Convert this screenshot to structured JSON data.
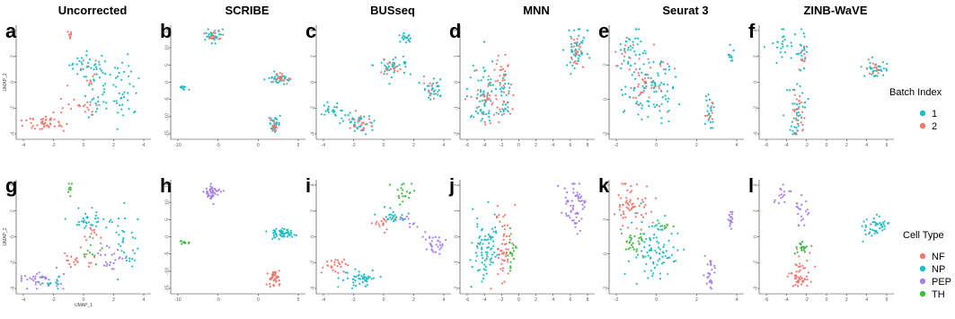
{
  "chart_data": {
    "type": "scatter",
    "methods": [
      "Uncorrected",
      "SCRIBE",
      "BUSseq",
      "MNN",
      "Seurat 3",
      "ZINB-WaVE"
    ],
    "batch_legend": {
      "title": "Batch Index",
      "entries": [
        {
          "label": "1",
          "color": "#1fbcc4"
        },
        {
          "label": "2",
          "color": "#f0786c"
        }
      ]
    },
    "celltype_legend": {
      "title": "Cell Type",
      "entries": [
        {
          "label": "NF",
          "color": "#f0786c"
        },
        {
          "label": "NP",
          "color": "#1fbcc4"
        },
        {
          "label": "PEP",
          "color": "#a680e8"
        },
        {
          "label": "TH",
          "color": "#3fbb3f"
        }
      ]
    },
    "panels": [
      {
        "letter": "a",
        "title": "Uncorrected",
        "row": 0,
        "color_by": "batch",
        "xlabel": "",
        "ylabel": "UMAP_2",
        "xticks": [
          "-4",
          "-2",
          "0",
          "2",
          "4"
        ],
        "yticks": [
          "4",
          "2",
          "0",
          "-2",
          "-4"
        ],
        "clusters": [
          {
            "cx": 0.4,
            "cy": 0.06,
            "sx": 0.01,
            "sy": 0.03,
            "n": 8,
            "group": "2"
          },
          {
            "cx": 0.55,
            "cy": 0.35,
            "sx": 0.08,
            "sy": 0.05,
            "n": 35,
            "group": "1"
          },
          {
            "cx": 0.8,
            "cy": 0.55,
            "sx": 0.06,
            "sy": 0.15,
            "n": 40,
            "group": "1"
          },
          {
            "cx": 0.6,
            "cy": 0.6,
            "sx": 0.05,
            "sy": 0.1,
            "n": 25,
            "group": "1"
          },
          {
            "cx": 0.45,
            "cy": 0.72,
            "sx": 0.08,
            "sy": 0.05,
            "n": 20,
            "group": "2"
          },
          {
            "cx": 0.2,
            "cy": 0.88,
            "sx": 0.1,
            "sy": 0.04,
            "n": 45,
            "group": "2"
          },
          {
            "cx": 0.55,
            "cy": 0.45,
            "sx": 0.05,
            "sy": 0.07,
            "n": 12,
            "group": "2"
          }
        ]
      },
      {
        "letter": "b",
        "title": "SCRIBE",
        "row": 0,
        "color_by": "batch",
        "xlabel": "",
        "ylabel": "",
        "xticks": [
          "-10",
          "-5",
          "0",
          "5"
        ],
        "yticks": [
          "15",
          "10",
          "5",
          "0",
          "-5",
          "-10",
          "-15"
        ],
        "clusters": [
          {
            "cx": 0.3,
            "cy": 0.08,
            "sx": 0.03,
            "sy": 0.03,
            "n": 30,
            "group": "1"
          },
          {
            "cx": 0.3,
            "cy": 0.08,
            "sx": 0.03,
            "sy": 0.03,
            "n": 15,
            "group": "2"
          },
          {
            "cx": 0.08,
            "cy": 0.55,
            "sx": 0.02,
            "sy": 0.01,
            "n": 10,
            "group": "1"
          },
          {
            "cx": 0.82,
            "cy": 0.47,
            "sx": 0.04,
            "sy": 0.02,
            "n": 30,
            "group": "1"
          },
          {
            "cx": 0.84,
            "cy": 0.47,
            "sx": 0.04,
            "sy": 0.02,
            "n": 20,
            "group": "2"
          },
          {
            "cx": 0.78,
            "cy": 0.88,
            "sx": 0.02,
            "sy": 0.03,
            "n": 30,
            "group": "1"
          },
          {
            "cx": 0.78,
            "cy": 0.88,
            "sx": 0.02,
            "sy": 0.03,
            "n": 15,
            "group": "2"
          }
        ]
      },
      {
        "letter": "c",
        "title": "BUSseq",
        "row": 0,
        "color_by": "batch",
        "xlabel": "",
        "ylabel": "",
        "xticks": [
          "-4",
          "-2",
          "0",
          "2",
          "4"
        ],
        "yticks": [
          "4",
          "2",
          "0",
          "-2",
          "-4"
        ],
        "clusters": [
          {
            "cx": 0.67,
            "cy": 0.1,
            "sx": 0.03,
            "sy": 0.04,
            "n": 20,
            "group": "1"
          },
          {
            "cx": 0.58,
            "cy": 0.35,
            "sx": 0.08,
            "sy": 0.05,
            "n": 35,
            "group": "1"
          },
          {
            "cx": 0.55,
            "cy": 0.35,
            "sx": 0.05,
            "sy": 0.04,
            "n": 15,
            "group": "2"
          },
          {
            "cx": 0.88,
            "cy": 0.55,
            "sx": 0.04,
            "sy": 0.05,
            "n": 30,
            "group": "1"
          },
          {
            "cx": 0.88,
            "cy": 0.55,
            "sx": 0.03,
            "sy": 0.04,
            "n": 10,
            "group": "2"
          },
          {
            "cx": 0.12,
            "cy": 0.75,
            "sx": 0.05,
            "sy": 0.04,
            "n": 25,
            "group": "1"
          },
          {
            "cx": 0.32,
            "cy": 0.88,
            "sx": 0.07,
            "sy": 0.04,
            "n": 35,
            "group": "1"
          },
          {
            "cx": 0.32,
            "cy": 0.88,
            "sx": 0.06,
            "sy": 0.03,
            "n": 20,
            "group": "2"
          }
        ]
      },
      {
        "letter": "d",
        "title": "MNN",
        "row": 0,
        "color_by": "batch",
        "xlabel": "",
        "ylabel": "",
        "xticks": [
          "-6",
          "-4",
          "-2",
          "0",
          "2",
          "4",
          "6",
          "8"
        ],
        "yticks": [
          "2",
          "1",
          "0",
          "-1",
          "-2"
        ],
        "clusters": [
          {
            "cx": 0.87,
            "cy": 0.2,
            "sx": 0.04,
            "sy": 0.1,
            "n": 45,
            "group": "1"
          },
          {
            "cx": 0.87,
            "cy": 0.2,
            "sx": 0.03,
            "sy": 0.08,
            "n": 20,
            "group": "2"
          },
          {
            "cx": 0.18,
            "cy": 0.62,
            "sx": 0.07,
            "sy": 0.17,
            "n": 70,
            "group": "1"
          },
          {
            "cx": 0.18,
            "cy": 0.62,
            "sx": 0.06,
            "sy": 0.14,
            "n": 30,
            "group": "2"
          },
          {
            "cx": 0.32,
            "cy": 0.6,
            "sx": 0.03,
            "sy": 0.18,
            "n": 40,
            "group": "2"
          },
          {
            "cx": 0.32,
            "cy": 0.6,
            "sx": 0.03,
            "sy": 0.15,
            "n": 20,
            "group": "1"
          }
        ]
      },
      {
        "letter": "e",
        "title": "Seurat 3",
        "row": 0,
        "color_by": "batch",
        "xlabel": "",
        "ylabel": "",
        "xticks": [
          "-2",
          "0",
          "2",
          "4"
        ],
        "yticks": [
          "4",
          "2",
          "0",
          "-2"
        ],
        "clusters": [
          {
            "cx": 0.12,
            "cy": 0.2,
            "sx": 0.06,
            "sy": 0.1,
            "n": 35,
            "group": "1"
          },
          {
            "cx": 0.12,
            "cy": 0.2,
            "sx": 0.05,
            "sy": 0.08,
            "n": 10,
            "group": "2"
          },
          {
            "cx": 0.3,
            "cy": 0.55,
            "sx": 0.1,
            "sy": 0.15,
            "n": 90,
            "group": "1"
          },
          {
            "cx": 0.28,
            "cy": 0.5,
            "sx": 0.09,
            "sy": 0.13,
            "n": 40,
            "group": "2"
          },
          {
            "cx": 0.92,
            "cy": 0.25,
            "sx": 0.01,
            "sy": 0.04,
            "n": 10,
            "group": "1"
          },
          {
            "cx": 0.76,
            "cy": 0.78,
            "sx": 0.02,
            "sy": 0.08,
            "n": 20,
            "group": "1"
          },
          {
            "cx": 0.76,
            "cy": 0.78,
            "sx": 0.02,
            "sy": 0.06,
            "n": 8,
            "group": "2"
          }
        ]
      },
      {
        "letter": "f",
        "title": "ZINB-WaVE",
        "row": 0,
        "color_by": "batch",
        "xlabel": "",
        "ylabel": "",
        "xticks": [
          "-6",
          "-4",
          "-2",
          "0",
          "2",
          "4",
          "6"
        ],
        "yticks": [
          "4",
          "2",
          "0",
          "-2",
          "-4"
        ],
        "clusters": [
          {
            "cx": 0.15,
            "cy": 0.15,
            "sx": 0.05,
            "sy": 0.08,
            "n": 25,
            "group": "1"
          },
          {
            "cx": 0.32,
            "cy": 0.25,
            "sx": 0.03,
            "sy": 0.08,
            "n": 20,
            "group": "1"
          },
          {
            "cx": 0.32,
            "cy": 0.25,
            "sx": 0.02,
            "sy": 0.06,
            "n": 8,
            "group": "2"
          },
          {
            "cx": 0.88,
            "cy": 0.38,
            "sx": 0.05,
            "sy": 0.04,
            "n": 30,
            "group": "1"
          },
          {
            "cx": 0.88,
            "cy": 0.38,
            "sx": 0.04,
            "sy": 0.03,
            "n": 12,
            "group": "2"
          },
          {
            "cx": 0.28,
            "cy": 0.78,
            "sx": 0.03,
            "sy": 0.12,
            "n": 40,
            "group": "1"
          },
          {
            "cx": 0.28,
            "cy": 0.78,
            "sx": 0.03,
            "sy": 0.1,
            "n": 25,
            "group": "2"
          }
        ]
      },
      {
        "letter": "g",
        "title": "",
        "row": 1,
        "color_by": "celltype",
        "xlabel": "UMAP_1",
        "ylabel": "UMAP_2",
        "xticks": [
          "-4",
          "-2",
          "0",
          "2",
          "4"
        ],
        "yticks": [
          "4",
          "2",
          "0",
          "-2",
          "-4"
        ],
        "clusters": [
          {
            "cx": 0.4,
            "cy": 0.06,
            "sx": 0.01,
            "sy": 0.03,
            "n": 8,
            "group": "TH"
          },
          {
            "cx": 0.55,
            "cy": 0.35,
            "sx": 0.08,
            "sy": 0.05,
            "n": 35,
            "group": "NP"
          },
          {
            "cx": 0.82,
            "cy": 0.55,
            "sx": 0.05,
            "sy": 0.15,
            "n": 30,
            "group": "NP"
          },
          {
            "cx": 0.72,
            "cy": 0.68,
            "sx": 0.06,
            "sy": 0.08,
            "n": 25,
            "group": "PEP"
          },
          {
            "cx": 0.55,
            "cy": 0.62,
            "sx": 0.04,
            "sy": 0.05,
            "n": 10,
            "group": "TH"
          },
          {
            "cx": 0.45,
            "cy": 0.72,
            "sx": 0.08,
            "sy": 0.05,
            "n": 20,
            "group": "NF"
          },
          {
            "cx": 0.18,
            "cy": 0.88,
            "sx": 0.1,
            "sy": 0.04,
            "n": 35,
            "group": "PEP"
          },
          {
            "cx": 0.25,
            "cy": 0.9,
            "sx": 0.06,
            "sy": 0.03,
            "n": 15,
            "group": "NP"
          },
          {
            "cx": 0.55,
            "cy": 0.45,
            "sx": 0.05,
            "sy": 0.06,
            "n": 12,
            "group": "NF"
          }
        ]
      },
      {
        "letter": "h",
        "title": "",
        "row": 1,
        "color_by": "celltype",
        "xlabel": "",
        "ylabel": "",
        "xticks": [
          "-10",
          "-5",
          "0",
          "5"
        ],
        "yticks": [
          "15",
          "10",
          "5",
          "0",
          "-5",
          "-10",
          "-15"
        ],
        "clusters": [
          {
            "cx": 0.3,
            "cy": 0.1,
            "sx": 0.03,
            "sy": 0.04,
            "n": 45,
            "group": "PEP"
          },
          {
            "cx": 0.08,
            "cy": 0.55,
            "sx": 0.02,
            "sy": 0.01,
            "n": 10,
            "group": "TH"
          },
          {
            "cx": 0.84,
            "cy": 0.47,
            "sx": 0.05,
            "sy": 0.02,
            "n": 50,
            "group": "NP"
          },
          {
            "cx": 0.78,
            "cy": 0.88,
            "sx": 0.02,
            "sy": 0.04,
            "n": 45,
            "group": "NF"
          }
        ]
      },
      {
        "letter": "i",
        "title": "",
        "row": 1,
        "color_by": "celltype",
        "xlabel": "",
        "ylabel": "",
        "xticks": [
          "-4",
          "-2",
          "0",
          "2",
          "4"
        ],
        "yticks": [
          "4",
          "2",
          "0",
          "-2",
          "-4"
        ],
        "clusters": [
          {
            "cx": 0.65,
            "cy": 0.12,
            "sx": 0.04,
            "sy": 0.06,
            "n": 20,
            "group": "TH"
          },
          {
            "cx": 0.55,
            "cy": 0.3,
            "sx": 0.05,
            "sy": 0.04,
            "n": 25,
            "group": "NP"
          },
          {
            "cx": 0.48,
            "cy": 0.38,
            "sx": 0.04,
            "sy": 0.04,
            "n": 15,
            "group": "NF"
          },
          {
            "cx": 0.88,
            "cy": 0.55,
            "sx": 0.04,
            "sy": 0.05,
            "n": 30,
            "group": "PEP"
          },
          {
            "cx": 0.7,
            "cy": 0.35,
            "sx": 0.03,
            "sy": 0.03,
            "n": 10,
            "group": "PEP"
          },
          {
            "cx": 0.12,
            "cy": 0.76,
            "sx": 0.05,
            "sy": 0.04,
            "n": 25,
            "group": "NF"
          },
          {
            "cx": 0.32,
            "cy": 0.88,
            "sx": 0.07,
            "sy": 0.04,
            "n": 45,
            "group": "NP"
          }
        ]
      },
      {
        "letter": "j",
        "title": "",
        "row": 1,
        "color_by": "celltype",
        "xlabel": "",
        "ylabel": "",
        "xticks": [
          "-6",
          "-4",
          "-2",
          "0",
          "2",
          "4",
          "6",
          "8"
        ],
        "yticks": [
          "2",
          "1",
          "0",
          "-1",
          "-2"
        ],
        "clusters": [
          {
            "cx": 0.87,
            "cy": 0.22,
            "sx": 0.04,
            "sy": 0.12,
            "n": 60,
            "group": "PEP"
          },
          {
            "cx": 0.18,
            "cy": 0.62,
            "sx": 0.06,
            "sy": 0.17,
            "n": 80,
            "group": "NP"
          },
          {
            "cx": 0.32,
            "cy": 0.6,
            "sx": 0.03,
            "sy": 0.18,
            "n": 50,
            "group": "NF"
          },
          {
            "cx": 0.38,
            "cy": 0.62,
            "sx": 0.02,
            "sy": 0.12,
            "n": 20,
            "group": "TH"
          }
        ]
      },
      {
        "letter": "k",
        "title": "",
        "row": 1,
        "color_by": "celltype",
        "xlabel": "",
        "ylabel": "",
        "xticks": [
          "-2",
          "0",
          "2",
          "4"
        ],
        "yticks": [
          "4",
          "2",
          "0",
          "-2"
        ],
        "clusters": [
          {
            "cx": 0.15,
            "cy": 0.25,
            "sx": 0.07,
            "sy": 0.12,
            "n": 60,
            "group": "NF"
          },
          {
            "cx": 0.32,
            "cy": 0.62,
            "sx": 0.09,
            "sy": 0.14,
            "n": 90,
            "group": "NP"
          },
          {
            "cx": 0.18,
            "cy": 0.55,
            "sx": 0.04,
            "sy": 0.05,
            "n": 25,
            "group": "TH"
          },
          {
            "cx": 0.42,
            "cy": 0.4,
            "sx": 0.03,
            "sy": 0.02,
            "n": 8,
            "group": "TH"
          },
          {
            "cx": 0.92,
            "cy": 0.35,
            "sx": 0.01,
            "sy": 0.05,
            "n": 15,
            "group": "PEP"
          },
          {
            "cx": 0.76,
            "cy": 0.82,
            "sx": 0.02,
            "sy": 0.09,
            "n": 25,
            "group": "PEP"
          }
        ]
      },
      {
        "letter": "l",
        "title": "",
        "row": 1,
        "color_by": "celltype",
        "xlabel": "",
        "ylabel": "",
        "xticks": [
          "-6",
          "-4",
          "-2",
          "0",
          "2",
          "4",
          "6"
        ],
        "yticks": [
          "4",
          "2",
          "0",
          "-2",
          "-4"
        ],
        "clusters": [
          {
            "cx": 0.15,
            "cy": 0.12,
            "sx": 0.03,
            "sy": 0.05,
            "n": 15,
            "group": "PEP"
          },
          {
            "cx": 0.3,
            "cy": 0.28,
            "sx": 0.03,
            "sy": 0.07,
            "n": 20,
            "group": "PEP"
          },
          {
            "cx": 0.88,
            "cy": 0.4,
            "sx": 0.05,
            "sy": 0.04,
            "n": 45,
            "group": "NP"
          },
          {
            "cx": 0.3,
            "cy": 0.6,
            "sx": 0.03,
            "sy": 0.04,
            "n": 18,
            "group": "TH"
          },
          {
            "cx": 0.28,
            "cy": 0.85,
            "sx": 0.04,
            "sy": 0.08,
            "n": 50,
            "group": "NF"
          }
        ]
      }
    ]
  }
}
